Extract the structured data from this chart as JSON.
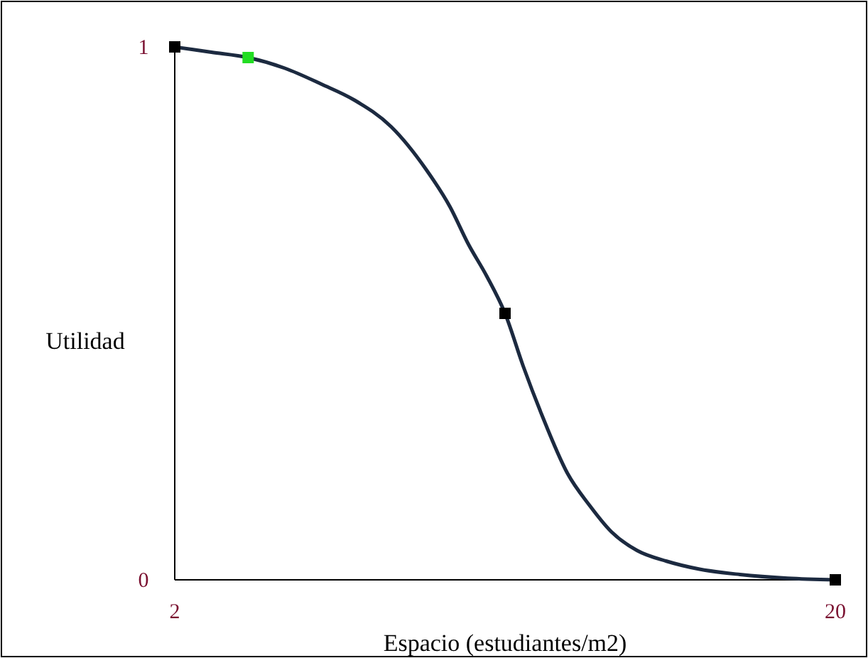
{
  "chart_data": {
    "type": "line",
    "xlabel": "Espacio (estudiantes/m2)",
    "ylabel": "Utilidad",
    "xlim": [
      2,
      20
    ],
    "ylim": [
      0,
      1
    ],
    "xticks": [
      2,
      20
    ],
    "yticks": [
      0,
      1
    ],
    "grid": false,
    "series": [
      {
        "color": "#1c2a40",
        "marker": "none",
        "x": [
          2,
          3,
          4,
          5,
          6,
          6.9,
          7.9,
          8.85,
          9.5,
          10,
          10.5,
          11,
          11.5,
          12,
          12.7,
          13.3,
          13.9,
          14.6,
          15.4,
          16.3,
          17.4,
          18.7,
          20
        ],
        "values": [
          1,
          0.99,
          0.98,
          0.96,
          0.93,
          0.9,
          0.85,
          0.77,
          0.7,
          0.63,
          0.57,
          0.5,
          0.4,
          0.31,
          0.2,
          0.14,
          0.09,
          0.055,
          0.035,
          0.02,
          0.01,
          0.003,
          0
        ]
      },
      {
        "type": "scatter",
        "color": "#000000",
        "marker": "square",
        "x": [
          2,
          11,
          20
        ],
        "values": [
          1,
          0.5,
          0
        ]
      },
      {
        "type": "scatter",
        "color": "#22dd22",
        "marker": "square",
        "x": [
          4
        ],
        "values": [
          0.98
        ]
      }
    ]
  }
}
